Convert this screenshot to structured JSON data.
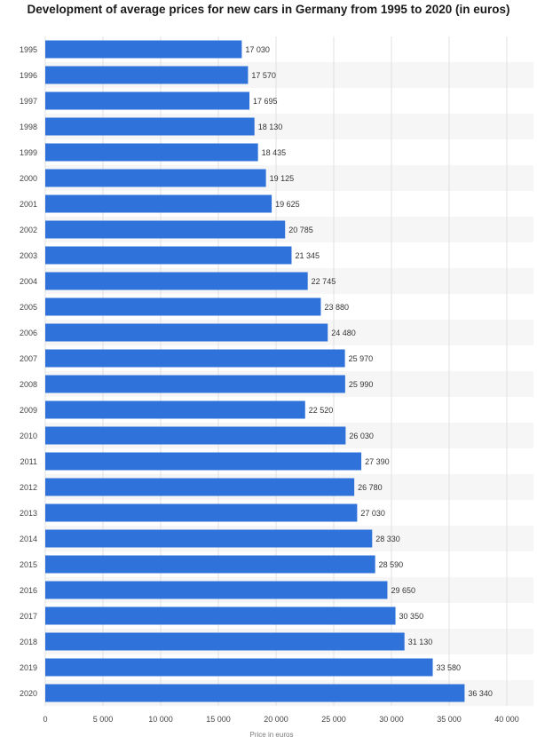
{
  "chart_data": {
    "type": "bar",
    "orientation": "horizontal",
    "title": "Development of average prices for new cars in Germany from 1995 to 2020 (in euros)",
    "xlabel": "Price in euros",
    "ylabel": "",
    "categories": [
      "1995",
      "1996",
      "1997",
      "1998",
      "1999",
      "2000",
      "2001",
      "2002",
      "2003",
      "2004",
      "2005",
      "2006",
      "2007",
      "2008",
      "2009",
      "2010",
      "2011",
      "2012",
      "2013",
      "2014",
      "2015",
      "2016",
      "2017",
      "2018",
      "2019",
      "2020"
    ],
    "values": [
      17030,
      17570,
      17695,
      18130,
      18435,
      19125,
      19625,
      20785,
      21345,
      22745,
      23880,
      24480,
      25970,
      25990,
      22520,
      26030,
      27390,
      26780,
      27030,
      28330,
      28590,
      29650,
      30350,
      31130,
      33580,
      36340
    ],
    "value_labels": [
      "17 030",
      "17 570",
      "17 695",
      "18 130",
      "18 435",
      "19 125",
      "19 625",
      "20 785",
      "21 345",
      "22 745",
      "23 880",
      "24 480",
      "25 970",
      "25 990",
      "22 520",
      "26 030",
      "27 390",
      "26 780",
      "27 030",
      "28 330",
      "28 590",
      "29 650",
      "30 350",
      "31 130",
      "33 580",
      "36 340"
    ],
    "xlim": [
      0,
      40000
    ],
    "xticks": [
      0,
      5000,
      10000,
      15000,
      20000,
      25000,
      30000,
      35000,
      40000
    ],
    "xtick_labels": [
      "0",
      "5 000",
      "10 000",
      "15 000",
      "20 000",
      "25 000",
      "30 000",
      "35 000",
      "40 000"
    ],
    "grid": true,
    "bar_color": "#2f72d9",
    "stripe_color": "#f6f6f6",
    "grid_color": "#e0e0e0"
  }
}
